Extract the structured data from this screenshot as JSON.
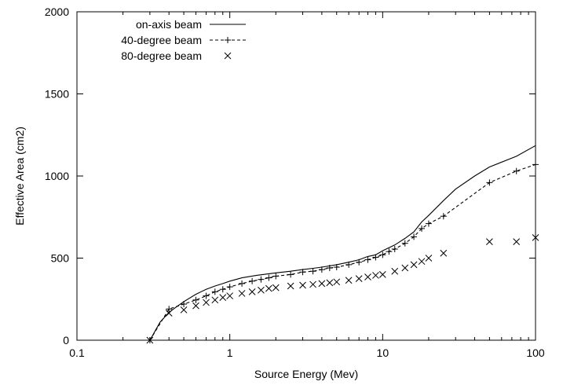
{
  "chart_data": {
    "type": "line",
    "title": "",
    "xlabel": "Source Energy (Mev)",
    "ylabel": "Effective Area (cm2)",
    "xscale": "log",
    "xlim": [
      0.1,
      100
    ],
    "ylim": [
      0,
      2000
    ],
    "x_ticks": [
      {
        "value": 0.1,
        "label": "0.1"
      },
      {
        "value": 1,
        "label": "1"
      },
      {
        "value": 10,
        "label": "10"
      },
      {
        "value": 100,
        "label": "100"
      }
    ],
    "y_ticks": [
      {
        "value": 0,
        "label": "0"
      },
      {
        "value": 500,
        "label": "500"
      },
      {
        "value": 1000,
        "label": "1000"
      },
      {
        "value": 1500,
        "label": "1500"
      },
      {
        "value": 2000,
        "label": "2000"
      }
    ],
    "legend_position": "top-left",
    "series": [
      {
        "name": "on-axis beam",
        "style": "solid-line",
        "color": "#000000",
        "x": [
          0.3,
          0.35,
          0.4,
          0.45,
          0.5,
          0.6,
          0.7,
          0.8,
          0.9,
          1.0,
          1.2,
          1.5,
          1.8,
          2.0,
          2.5,
          3,
          3.5,
          4,
          5,
          6,
          7,
          8,
          9,
          10,
          12,
          14,
          16,
          18,
          20,
          25,
          30,
          40,
          50,
          75,
          100
        ],
        "y": [
          0,
          110,
          170,
          205,
          235,
          280,
          310,
          330,
          345,
          360,
          380,
          395,
          405,
          410,
          420,
          430,
          438,
          445,
          460,
          475,
          490,
          510,
          520,
          545,
          580,
          620,
          660,
          720,
          760,
          850,
          920,
          1000,
          1055,
          1120,
          1185
        ]
      },
      {
        "name": "40-degree beam",
        "style": "dashed-line-plus",
        "color": "#000000",
        "x": [
          0.3,
          0.4,
          0.5,
          0.6,
          0.7,
          0.8,
          0.9,
          1.0,
          1.2,
          1.4,
          1.6,
          1.8,
          2.0,
          2.5,
          3,
          3.5,
          4,
          4.5,
          5,
          6,
          7,
          8,
          9,
          10,
          11,
          12,
          14,
          16,
          18,
          20,
          25,
          50,
          75,
          100
        ],
        "y": [
          0,
          190,
          220,
          245,
          270,
          295,
          310,
          325,
          345,
          360,
          370,
          380,
          390,
          400,
          415,
          420,
          430,
          440,
          445,
          460,
          475,
          490,
          505,
          520,
          540,
          555,
          590,
          630,
          680,
          710,
          755,
          960,
          1030,
          1070
        ]
      },
      {
        "name": "80-degree beam",
        "style": "x-markers",
        "color": "#000000",
        "x": [
          0.3,
          0.4,
          0.5,
          0.6,
          0.7,
          0.8,
          0.9,
          1.0,
          1.2,
          1.4,
          1.6,
          1.8,
          2.0,
          2.5,
          3,
          3.5,
          4,
          4.5,
          5,
          6,
          7,
          8,
          9,
          10,
          12,
          14,
          16,
          18,
          20,
          25,
          50,
          75,
          100
        ],
        "y": [
          0,
          165,
          185,
          210,
          230,
          245,
          260,
          270,
          285,
          295,
          305,
          315,
          320,
          330,
          335,
          340,
          345,
          350,
          355,
          365,
          375,
          385,
          395,
          400,
          420,
          440,
          460,
          480,
          500,
          530,
          600,
          600,
          625
        ]
      }
    ]
  }
}
